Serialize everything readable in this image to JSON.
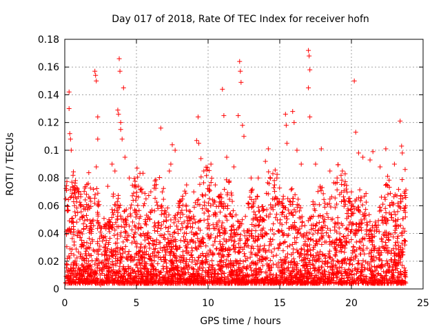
{
  "chart_data": {
    "type": "scatter",
    "title": "Day 017 of 2018, Rate Of TEC Index for receiver hofn",
    "xlabel": "GPS time / hours",
    "ylabel": "ROTI / TECUs",
    "xlim": [
      0,
      25
    ],
    "ylim": [
      0,
      0.18
    ],
    "x_ticks": [
      0,
      5,
      10,
      15,
      20,
      25
    ],
    "y_ticks": [
      0,
      0.02,
      0.04,
      0.06,
      0.08,
      0.1,
      0.12,
      0.14,
      0.16,
      0.18
    ],
    "x_tick_labels": [
      "0",
      "5",
      "10",
      "15",
      "20",
      "25"
    ],
    "y_tick_labels": [
      "0",
      "0.02",
      "0.04",
      "0.06",
      "0.08",
      "0.1",
      "0.12",
      "0.14",
      "0.16",
      "0.18"
    ],
    "grid": true,
    "marker": "+",
    "color": "#ff0000",
    "series": [
      {
        "points": [
          [
            0.2,
            0.013
          ],
          [
            0.3,
            0.142
          ],
          [
            0.3,
            0.13
          ],
          [
            0.35,
            0.112
          ],
          [
            0.4,
            0.108
          ],
          [
            0.45,
            0.1
          ],
          [
            0.5,
            0.077
          ],
          [
            0.6,
            0.066
          ],
          [
            0.9,
            0.055
          ],
          [
            1.2,
            0.052
          ],
          [
            1.5,
            0.045
          ],
          [
            1.9,
            0.043
          ],
          [
            2.1,
            0.157
          ],
          [
            2.15,
            0.154
          ],
          [
            2.2,
            0.15
          ],
          [
            2.3,
            0.124
          ],
          [
            2.3,
            0.108
          ],
          [
            2.2,
            0.088
          ],
          [
            2.5,
            0.003
          ],
          [
            2.8,
            0.005
          ],
          [
            3.0,
            0.074
          ],
          [
            3.3,
            0.09
          ],
          [
            3.5,
            0.085
          ],
          [
            3.7,
            0.129
          ],
          [
            3.75,
            0.126
          ],
          [
            3.8,
            0.166
          ],
          [
            3.85,
            0.157
          ],
          [
            3.9,
            0.12
          ],
          [
            3.9,
            0.115
          ],
          [
            4.0,
            0.108
          ],
          [
            4.1,
            0.145
          ],
          [
            4.2,
            0.095
          ],
          [
            4.5,
            0.08
          ],
          [
            4.9,
            0.075
          ],
          [
            5.5,
            0.06
          ],
          [
            6.0,
            0.055
          ],
          [
            6.5,
            0.058
          ],
          [
            6.7,
            0.116
          ],
          [
            6.8,
            0.07
          ],
          [
            7.3,
            0.085
          ],
          [
            7.4,
            0.09
          ],
          [
            7.5,
            0.104
          ],
          [
            7.7,
            0.1
          ],
          [
            8.0,
            0.06
          ],
          [
            8.5,
            0.075
          ],
          [
            9.0,
            0.07
          ],
          [
            9.2,
            0.107
          ],
          [
            9.3,
            0.124
          ],
          [
            9.35,
            0.105
          ],
          [
            9.5,
            0.094
          ],
          [
            9.7,
            0.085
          ],
          [
            10.2,
            0.09
          ],
          [
            10.5,
            0.075
          ],
          [
            11.0,
            0.144
          ],
          [
            11.1,
            0.125
          ],
          [
            11.3,
            0.095
          ],
          [
            11.8,
            0.088
          ],
          [
            12.1,
            0.125
          ],
          [
            12.2,
            0.164
          ],
          [
            12.25,
            0.157
          ],
          [
            12.3,
            0.149
          ],
          [
            12.4,
            0.118
          ],
          [
            12.5,
            0.11
          ],
          [
            13.0,
            0.08
          ],
          [
            13.5,
            0.08
          ],
          [
            14.0,
            0.092
          ],
          [
            14.2,
            0.101
          ],
          [
            14.5,
            0.065
          ],
          [
            14.8,
            0.08
          ],
          [
            15.2,
            0.06
          ],
          [
            15.4,
            0.126
          ],
          [
            15.45,
            0.118
          ],
          [
            15.5,
            0.105
          ],
          [
            15.9,
            0.128
          ],
          [
            16.0,
            0.12
          ],
          [
            16.2,
            0.1
          ],
          [
            16.5,
            0.09
          ],
          [
            17.0,
            0.172
          ],
          [
            17.05,
            0.168
          ],
          [
            17.1,
            0.158
          ],
          [
            17.0,
            0.145
          ],
          [
            17.1,
            0.124
          ],
          [
            17.5,
            0.09
          ],
          [
            17.9,
            0.101
          ],
          [
            18.5,
            0.085
          ],
          [
            19.0,
            0.08
          ],
          [
            19.5,
            0.075
          ],
          [
            20.0,
            0.07
          ],
          [
            20.2,
            0.15
          ],
          [
            20.3,
            0.113
          ],
          [
            20.5,
            0.098
          ],
          [
            20.8,
            0.095
          ],
          [
            21.3,
            0.093
          ],
          [
            21.5,
            0.099
          ],
          [
            22.0,
            0.088
          ],
          [
            22.4,
            0.101
          ],
          [
            23.0,
            0.09
          ],
          [
            23.4,
            0.121
          ],
          [
            23.5,
            0.103
          ],
          [
            23.55,
            0.098
          ],
          [
            23.7,
            0.07
          ],
          [
            23.75,
            0.01
          ]
        ]
      }
    ]
  }
}
